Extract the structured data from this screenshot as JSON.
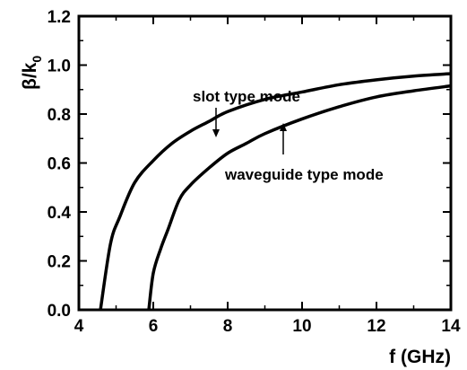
{
  "chart_data": {
    "type": "line",
    "title": "",
    "xlabel": "f (GHz)",
    "ylabel": {
      "main": "β/k",
      "sub": "0"
    },
    "xlim": [
      4,
      14
    ],
    "ylim": [
      0,
      1.2
    ],
    "x_ticks": [
      "4",
      "6",
      "8",
      "10",
      "12",
      "14"
    ],
    "y_ticks": [
      "0.0",
      "0.2",
      "0.4",
      "0.6",
      "0.8",
      "1.0",
      "1.2"
    ],
    "grid": false,
    "series": [
      {
        "name": "slot type mode",
        "points": [
          [
            4.58,
            0.0
          ],
          [
            4.85,
            0.27
          ],
          [
            5.1,
            0.38
          ],
          [
            5.5,
            0.52
          ],
          [
            6.0,
            0.61
          ],
          [
            6.5,
            0.68
          ],
          [
            7.0,
            0.73
          ],
          [
            7.5,
            0.77
          ],
          [
            8.0,
            0.81
          ],
          [
            9.0,
            0.86
          ],
          [
            10.0,
            0.89
          ],
          [
            11.0,
            0.92
          ],
          [
            12.0,
            0.94
          ],
          [
            13.0,
            0.955
          ],
          [
            14.0,
            0.965
          ]
        ]
      },
      {
        "name": "waveguide type mode",
        "points": [
          [
            5.88,
            0.0
          ],
          [
            6.0,
            0.15
          ],
          [
            6.2,
            0.25
          ],
          [
            6.4,
            0.33
          ],
          [
            6.7,
            0.45
          ],
          [
            7.0,
            0.51
          ],
          [
            7.5,
            0.58
          ],
          [
            8.0,
            0.64
          ],
          [
            8.5,
            0.68
          ],
          [
            9.0,
            0.72
          ],
          [
            10.0,
            0.78
          ],
          [
            11.0,
            0.83
          ],
          [
            12.0,
            0.87
          ],
          [
            13.0,
            0.895
          ],
          [
            14.0,
            0.915
          ]
        ]
      }
    ],
    "annotations": [
      {
        "text": "slot type mode",
        "target_series": "slot type mode"
      },
      {
        "text": "waveguide type mode",
        "target_series": "waveguide type mode"
      }
    ]
  }
}
